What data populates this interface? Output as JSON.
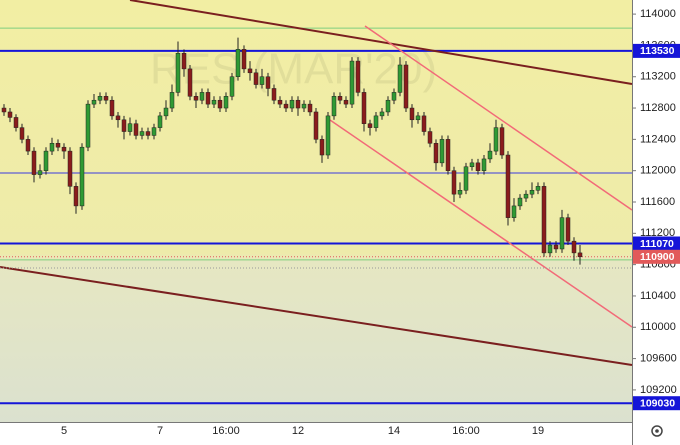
{
  "chart_data": {
    "type": "candlestick",
    "watermark": "RES (MAR'20)",
    "ylim": [
      108790,
      114180
    ],
    "yticks": [
      109200,
      109600,
      110000,
      110400,
      110800,
      111200,
      111600,
      112000,
      112400,
      112800,
      113200,
      113600,
      114000
    ],
    "categories": [
      null,
      null,
      null,
      null,
      null,
      null,
      null,
      null,
      null,
      null,
      "5",
      null,
      null,
      null,
      null,
      null,
      null,
      null,
      null,
      null,
      null,
      null,
      null,
      null,
      null,
      null,
      "7",
      null,
      null,
      null,
      null,
      null,
      null,
      null,
      null,
      null,
      null,
      "16:00",
      null,
      null,
      null,
      null,
      null,
      null,
      null,
      null,
      null,
      null,
      null,
      "12",
      null,
      null,
      null,
      null,
      null,
      null,
      null,
      null,
      null,
      null,
      null,
      null,
      null,
      null,
      null,
      "14",
      null,
      null,
      null,
      null,
      null,
      null,
      null,
      null,
      null,
      null,
      null,
      "16:00",
      null,
      null,
      null,
      null,
      null,
      null,
      null,
      null,
      null,
      null,
      null,
      "19",
      null,
      null,
      null,
      null,
      null,
      null,
      null
    ],
    "open": [
      112800,
      112750,
      112680,
      112550,
      112400,
      112250,
      111950,
      112000,
      112250,
      112350,
      112300,
      112250,
      111800,
      111550,
      112300,
      112850,
      112900,
      112950,
      112900,
      112700,
      112650,
      112500,
      112600,
      112450,
      112500,
      112450,
      112550,
      112700,
      112800,
      113000,
      113500,
      113300,
      112950,
      112900,
      113000,
      112850,
      112900,
      112800,
      112950,
      113200,
      113550,
      113300,
      113250,
      113100,
      113200,
      113050,
      112900,
      112850,
      112800,
      112900,
      112800,
      112850,
      112750,
      112400,
      112200,
      112700,
      112950,
      112900,
      112850,
      113400,
      113000,
      112600,
      112550,
      112700,
      112750,
      112900,
      113000,
      113350,
      112800,
      112650,
      112700,
      112500,
      112350,
      112100,
      112400,
      112000,
      111700,
      111750,
      112050,
      112100,
      112000,
      112150,
      112250,
      112550,
      112200,
      111400,
      111550,
      111650,
      111700,
      111750,
      111800,
      110950,
      111050,
      111000,
      111400,
      111100,
      110950
    ],
    "high": [
      112850,
      112800,
      112720,
      112600,
      112450,
      112300,
      112080,
      112300,
      112420,
      112400,
      112350,
      112300,
      111850,
      112350,
      112900,
      112980,
      113000,
      113000,
      112950,
      112750,
      112700,
      112680,
      112650,
      112550,
      112550,
      112600,
      112750,
      112900,
      113100,
      113650,
      113550,
      113350,
      113000,
      113050,
      113050,
      112950,
      112950,
      113000,
      113250,
      113700,
      113600,
      113400,
      113300,
      113300,
      113250,
      113100,
      112950,
      112900,
      112950,
      112950,
      112900,
      112900,
      112800,
      112450,
      112750,
      113000,
      113000,
      112950,
      113450,
      113450,
      113050,
      112650,
      112750,
      112800,
      112950,
      113050,
      113450,
      113400,
      112850,
      112750,
      112750,
      112550,
      112400,
      112450,
      112450,
      112050,
      111850,
      112100,
      112150,
      112150,
      112200,
      112350,
      112650,
      112600,
      112250,
      111650,
      111700,
      111750,
      111850,
      111850,
      111850,
      111100,
      111100,
      111500,
      111450,
      111150,
      111050
    ],
    "low": [
      112700,
      112620,
      112500,
      112350,
      112200,
      111850,
      111900,
      111950,
      112200,
      112250,
      112150,
      111700,
      111450,
      111500,
      112250,
      112800,
      112850,
      112850,
      112650,
      112550,
      112400,
      112450,
      112400,
      112400,
      112400,
      112400,
      112500,
      112650,
      112750,
      112950,
      113200,
      112900,
      112800,
      112850,
      112800,
      112800,
      112750,
      112750,
      112900,
      113150,
      113250,
      113150,
      113050,
      113050,
      112950,
      112850,
      112800,
      112750,
      112750,
      112700,
      112750,
      112700,
      112350,
      112100,
      112150,
      112650,
      112850,
      112800,
      112800,
      112950,
      112500,
      112450,
      112500,
      112650,
      112700,
      112850,
      112950,
      112750,
      112550,
      112600,
      112450,
      112300,
      112000,
      112050,
      111950,
      111600,
      111650,
      111700,
      112000,
      111950,
      111950,
      112100,
      112200,
      112150,
      111300,
      111350,
      111500,
      111600,
      111650,
      111700,
      110900,
      110900,
      110950,
      110950,
      111050,
      110850,
      110800
    ],
    "close": [
      112750,
      112680,
      112550,
      112400,
      112250,
      111950,
      112000,
      112250,
      112350,
      112300,
      112250,
      111800,
      111550,
      112300,
      112850,
      112900,
      112950,
      112900,
      112700,
      112650,
      112500,
      112600,
      112450,
      112500,
      112450,
      112550,
      112700,
      112800,
      113000,
      113500,
      113300,
      112950,
      112900,
      113000,
      112850,
      112900,
      112800,
      112950,
      113200,
      113550,
      113300,
      113250,
      113100,
      113200,
      113050,
      112900,
      112850,
      112800,
      112900,
      112800,
      112850,
      112750,
      112400,
      112200,
      112700,
      112950,
      112900,
      112850,
      113400,
      113000,
      112600,
      112550,
      112700,
      112750,
      112900,
      113000,
      113350,
      112800,
      112650,
      112700,
      112500,
      112350,
      112100,
      112400,
      112000,
      111700,
      111750,
      112050,
      112100,
      112000,
      112150,
      112250,
      112550,
      112200,
      111400,
      111550,
      111650,
      111700,
      111750,
      111800,
      110950,
      111050,
      111000,
      111400,
      111100,
      110950,
      110900
    ],
    "up_color": "#2f9a34",
    "down_color": "#8a1c1c",
    "levels": [
      {
        "value": 113530,
        "color": "#1515d8"
      },
      {
        "value": 111070,
        "color": "#1515d8"
      },
      {
        "value": 110900,
        "color": "#e25a5a"
      },
      {
        "value": 109030,
        "color": "#1515d8"
      }
    ],
    "lines": [
      {
        "value": 113820,
        "color": "#7fcf7f"
      },
      {
        "value": 111970,
        "color": "#3a3ae0"
      },
      {
        "value": 110860,
        "color": "#7fcf7f"
      }
    ]
  }
}
